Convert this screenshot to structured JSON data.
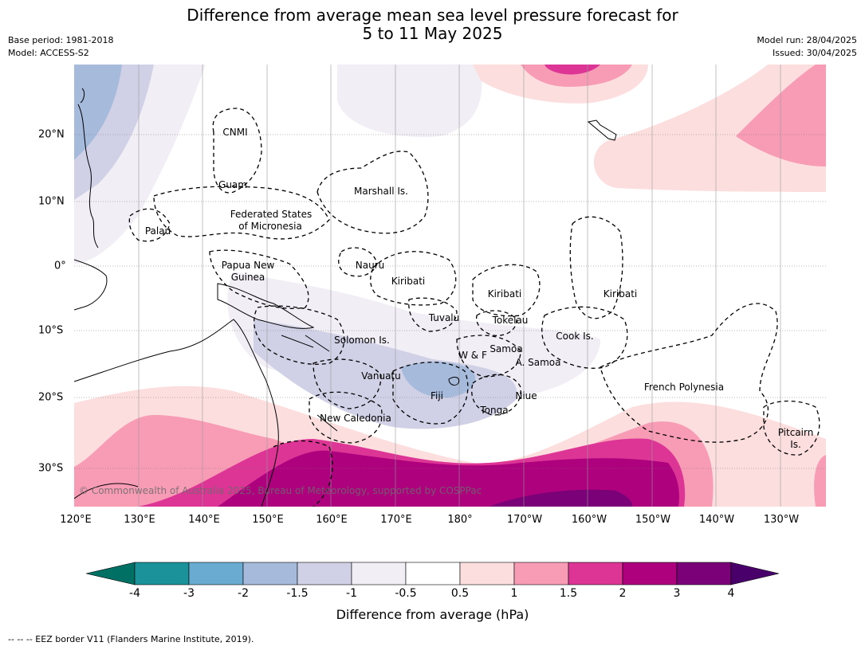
{
  "title_line1": "Difference from average mean sea level pressure forecast for",
  "title_line2": "5 to 11 May 2025",
  "base_period": "Base period: 1981-2018",
  "model": "Model: ACCESS-S2",
  "model_run": "Model run: 28/04/2025",
  "issued": "Issued: 30/04/2025",
  "lon_labels": [
    "120°E",
    "130°E",
    "140°E",
    "150°E",
    "160°E",
    "170°E",
    "180°",
    "170°W",
    "160°W",
    "150°W",
    "140°W",
    "130°W"
  ],
  "lat_labels": [
    "20°N",
    "10°N",
    "0°",
    "10°S",
    "20°S",
    "30°S"
  ],
  "regions": {
    "cnmi": "CNMI",
    "guam": "Guam",
    "marshall": "Marshall Is.",
    "fsm_1": "Federated States",
    "fsm_2": "of Micronesia",
    "palau": "Palau",
    "png_1": "Papua New",
    "png_2": "Guinea",
    "nauru": "Nauru",
    "kiribati_w": "Kiribati",
    "kiribati_c": "Kiribati",
    "kiribati_e": "Kiribati",
    "tuvalu": "Tuvalu",
    "tokelau": "Tokelau",
    "solomon": "Solomon Is.",
    "samoa": "Samoa",
    "wf": "W & F",
    "a_samoa": "A. Samoa",
    "cook": "Cook Is.",
    "vanuatu": "Vanuatu",
    "fiji": "Fiji",
    "niue": "Niue",
    "tonga": "Tonga",
    "new_caledonia": "New Caledonia",
    "french_polynesia": "French Polynesia",
    "pitcairn_1": "Pitcairn",
    "pitcairn_2": "Is."
  },
  "copyright": "© Commonwealth of Australia 2025, Bureau of Meteorology, supported by COSPPac",
  "colorbar": {
    "ticks": [
      "-4",
      "-3",
      "-2",
      "-1.5",
      "-1",
      "-0.5",
      "0.5",
      "1",
      "1.5",
      "2",
      "3",
      "4"
    ],
    "colors": [
      "#007064",
      "#1b9199",
      "#6aabd2",
      "#a6badb",
      "#d0d1e6",
      "#f1eef5",
      "#ffffff",
      "#fddede",
      "#f89cb6",
      "#dc3596",
      "#ad017e",
      "#7a0178",
      "#49006a"
    ],
    "label": "Difference from average (hPa)"
  },
  "footer": "--  --  -- EEZ border V11 (Flanders Marine Institute, 2019)."
}
